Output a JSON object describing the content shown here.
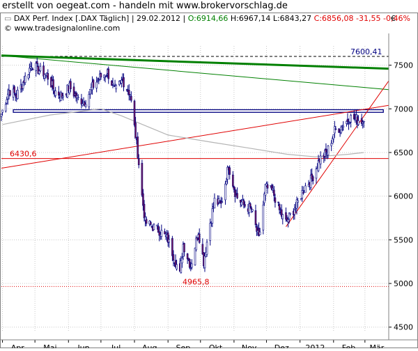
{
  "header": {
    "headline": "erstellt von oegeat.com - handeln mit www.brokervorschlag.de"
  },
  "chart_header": {
    "name": "DAX Perf. Index [.DAX Täglich]",
    "date": "29.02.2012",
    "open": "O:6914,66",
    "high": "H:6967,14",
    "low": "L:6843,27",
    "close": "C:6856,08",
    "change": "-31,55",
    "change_pct": "-0,46%",
    "source": "© www.tradesignalonline.com",
    "currency": "€"
  },
  "colors": {
    "up_candle": "#ffffff",
    "down_candle": "#7a1a5a",
    "candle_outline": "#000080",
    "green_trend": "#008000",
    "red_line": "#e00000",
    "moving_average": "#b4b4b4",
    "horizontal_band": "#000080",
    "grid": "#c8c8c8",
    "open_color": "#008000",
    "close_color": "#e00000"
  },
  "chart_data": {
    "type": "candlestick",
    "title": "DAX Perf. Index [.DAX Täglich]",
    "x_ticks": [
      "Apr",
      "Mai",
      "Jun",
      "Jul",
      "Aug",
      "Sep",
      "Okt",
      "Nov",
      "Dez",
      "2012",
      "Feb",
      "Mär"
    ],
    "y_ticks": [
      4500,
      5000,
      5500,
      6000,
      6500,
      7000,
      7500
    ],
    "ylim": [
      4450,
      7720
    ],
    "xlim": [
      "2011-03-31",
      "2012-03-23"
    ],
    "grid": true,
    "annotations": [
      {
        "label": "7600,41",
        "value": 7600.41
      },
      {
        "label": "6430,6",
        "value": 6430.6
      },
      {
        "label": "4965,8",
        "value": 4965.8
      }
    ],
    "horizontal_lines": [
      {
        "name": "support",
        "value": 6430.6,
        "style": "solid",
        "color": "#e00000"
      },
      {
        "name": "high",
        "value": 7600.41,
        "style": "dashed",
        "color": "#000000"
      },
      {
        "name": "low",
        "value": 4965.8,
        "style": "dotted",
        "color": "#e00000"
      }
    ],
    "band": {
      "from": 6960,
      "to": 6990,
      "start": "2011-04-11",
      "end": "2012-03-18"
    },
    "trend_lines": [
      {
        "name": "green-thick",
        "from": [
          "2011-03-31",
          7610
        ],
        "to": [
          "2012-03-23",
          7460
        ],
        "color": "#008000",
        "width": 3
      },
      {
        "name": "green-thin",
        "from": [
          "2011-03-31",
          7610
        ],
        "to": [
          "2012-03-23",
          7220
        ],
        "color": "#008000",
        "width": 1
      },
      {
        "name": "red-rising",
        "from": [
          "2011-03-31",
          6320
        ],
        "to": [
          "2012-03-23",
          7040
        ],
        "color": "#e00000",
        "width": 1
      },
      {
        "name": "red-steep",
        "from": [
          "2011-12-19",
          5650
        ],
        "to": [
          "2012-03-23",
          7320
        ],
        "color": "#e00000",
        "width": 1
      }
    ],
    "moving_average": [
      [
        "2011-04-01",
        6820
      ],
      [
        "2011-05-15",
        6930
      ],
      [
        "2011-07-01",
        7000
      ],
      [
        "2011-07-20",
        6920
      ],
      [
        "2011-09-01",
        6700
      ],
      [
        "2011-10-10",
        6620
      ],
      [
        "2011-11-15",
        6550
      ],
      [
        "2011-12-20",
        6480
      ],
      [
        "2012-01-15",
        6450
      ],
      [
        "2012-02-15",
        6480
      ],
      [
        "2012-02-29",
        6500
      ]
    ],
    "series": [
      {
        "name": "DAX Perf. Index",
        "weekly_close": [
          [
            "2011-03-31",
            6940
          ],
          [
            "2011-04-07",
            7215
          ],
          [
            "2011-04-14",
            7155
          ],
          [
            "2011-04-21",
            7330
          ],
          [
            "2011-04-28",
            7510
          ],
          [
            "2011-05-05",
            7440
          ],
          [
            "2011-05-12",
            7390
          ],
          [
            "2011-05-19",
            7210
          ],
          [
            "2011-05-26",
            7150
          ],
          [
            "2011-06-02",
            7250
          ],
          [
            "2011-06-09",
            7120
          ],
          [
            "2011-06-16",
            7080
          ],
          [
            "2011-06-23",
            7250
          ],
          [
            "2011-06-30",
            7360
          ],
          [
            "2011-07-07",
            7420
          ],
          [
            "2011-07-14",
            7200
          ],
          [
            "2011-07-21",
            7330
          ],
          [
            "2011-07-28",
            7170
          ],
          [
            "2011-08-04",
            6500
          ],
          [
            "2011-08-08",
            6000
          ],
          [
            "2011-08-11",
            5700
          ],
          [
            "2011-08-18",
            5650
          ],
          [
            "2011-08-25",
            5600
          ],
          [
            "2011-09-01",
            5500
          ],
          [
            "2011-09-08",
            5250
          ],
          [
            "2011-09-12",
            5100
          ],
          [
            "2011-09-15",
            5450
          ],
          [
            "2011-09-22",
            5200
          ],
          [
            "2011-09-29",
            5600
          ],
          [
            "2011-10-04",
            5250
          ],
          [
            "2011-10-10",
            5700
          ],
          [
            "2011-10-14",
            5950
          ],
          [
            "2011-10-20",
            5900
          ],
          [
            "2011-10-27",
            6350
          ],
          [
            "2011-11-03",
            6000
          ],
          [
            "2011-11-10",
            5900
          ],
          [
            "2011-11-17",
            5850
          ],
          [
            "2011-11-24",
            5500
          ],
          [
            "2011-11-30",
            6100
          ],
          [
            "2011-12-07",
            6050
          ],
          [
            "2011-12-14",
            5800
          ],
          [
            "2011-12-19",
            5700
          ],
          [
            "2011-12-29",
            5900
          ],
          [
            "2012-01-05",
            6100
          ],
          [
            "2012-01-12",
            6200
          ],
          [
            "2012-01-19",
            6420
          ],
          [
            "2012-01-26",
            6500
          ],
          [
            "2012-02-02",
            6750
          ],
          [
            "2012-02-09",
            6800
          ],
          [
            "2012-02-16",
            6900
          ],
          [
            "2012-02-23",
            6880
          ],
          [
            "2012-02-29",
            6856
          ]
        ]
      }
    ]
  }
}
